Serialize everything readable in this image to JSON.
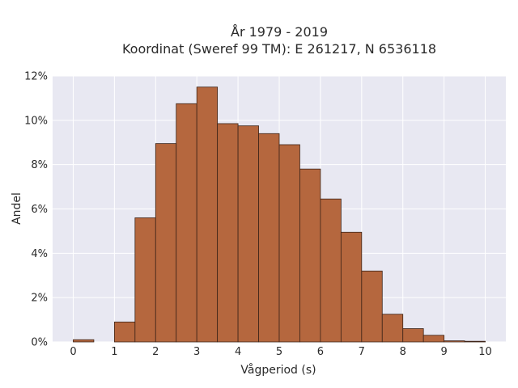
{
  "chart_data": {
    "type": "bar",
    "title": "År 1979 - 2019",
    "subtitle": "Koordinat (Sweref 99 TM): E 261217, N 6536118",
    "xlabel": "Vågperiod (s)",
    "ylabel": "Andel",
    "bin_width": 0.5,
    "bins": [
      {
        "x0": 0.0,
        "x1": 0.5,
        "value": 0.1
      },
      {
        "x0": 0.5,
        "x1": 1.0,
        "value": 0.0
      },
      {
        "x0": 1.0,
        "x1": 1.5,
        "value": 0.9
      },
      {
        "x0": 1.5,
        "x1": 2.0,
        "value": 5.6
      },
      {
        "x0": 2.0,
        "x1": 2.5,
        "value": 8.95
      },
      {
        "x0": 2.5,
        "x1": 3.0,
        "value": 10.75
      },
      {
        "x0": 3.0,
        "x1": 3.5,
        "value": 11.5
      },
      {
        "x0": 3.5,
        "x1": 4.0,
        "value": 9.85
      },
      {
        "x0": 4.0,
        "x1": 4.5,
        "value": 9.75
      },
      {
        "x0": 4.5,
        "x1": 5.0,
        "value": 9.4
      },
      {
        "x0": 5.0,
        "x1": 5.5,
        "value": 8.9
      },
      {
        "x0": 5.5,
        "x1": 6.0,
        "value": 7.8
      },
      {
        "x0": 6.0,
        "x1": 6.5,
        "value": 6.45
      },
      {
        "x0": 6.5,
        "x1": 7.0,
        "value": 4.95
      },
      {
        "x0": 7.0,
        "x1": 7.5,
        "value": 3.2
      },
      {
        "x0": 7.5,
        "x1": 8.0,
        "value": 1.25
      },
      {
        "x0": 8.0,
        "x1": 8.5,
        "value": 0.6
      },
      {
        "x0": 8.5,
        "x1": 9.0,
        "value": 0.3
      },
      {
        "x0": 9.0,
        "x1": 9.5,
        "value": 0.05
      },
      {
        "x0": 9.5,
        "x1": 10.0,
        "value": 0.03
      }
    ],
    "xlim": [
      -0.5,
      10.5
    ],
    "ylim": [
      0,
      12
    ],
    "xticks": [
      0,
      1,
      2,
      3,
      4,
      5,
      6,
      7,
      8,
      9,
      10
    ],
    "xtick_labels": [
      "0",
      "1",
      "2",
      "3",
      "4",
      "5",
      "6",
      "7",
      "8",
      "9",
      "10"
    ],
    "yticks": [
      0,
      2,
      4,
      6,
      8,
      10,
      12
    ],
    "ytick_labels": [
      "0%",
      "2%",
      "4%",
      "6%",
      "8%",
      "10%",
      "12%"
    ],
    "grid": true,
    "colors": {
      "bar_fill": "#b5673e",
      "bar_edge": "#3d2418",
      "plot_bg": "#e8e8f2",
      "grid": "#ffffff"
    }
  }
}
